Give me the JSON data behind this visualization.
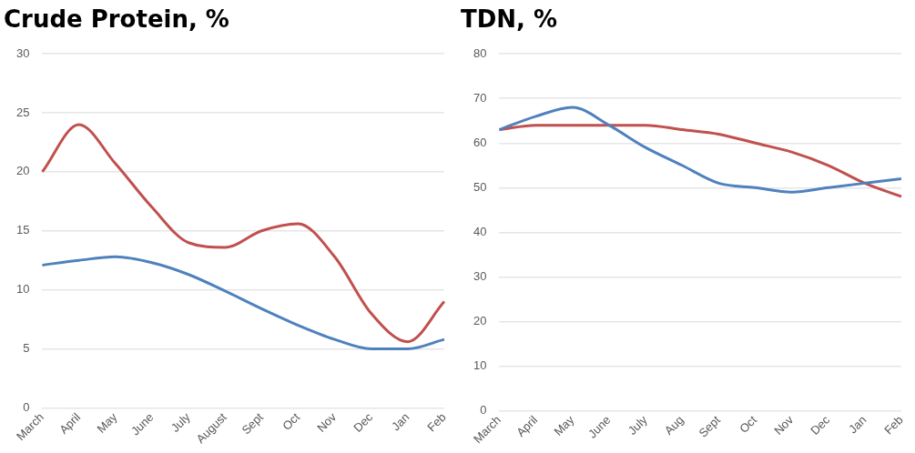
{
  "chart_data": [
    {
      "type": "line",
      "title": "Crude Protein, %",
      "categories": [
        "March",
        "April",
        "May",
        "June",
        "July",
        "August",
        "Sept",
        "Oct",
        "Nov",
        "Dec",
        "Jan",
        "Feb"
      ],
      "series": [
        {
          "color": "#c0504d",
          "values": [
            20,
            24,
            20.7,
            17,
            14,
            13.6,
            15,
            15.6,
            12.8,
            8,
            5.6,
            9
          ]
        },
        {
          "color": "#4f81bd",
          "values": [
            12.1,
            12.5,
            12.8,
            12.3,
            11.3,
            9.9,
            8.4,
            7,
            5.8,
            5,
            5,
            5.8
          ]
        }
      ],
      "ylim": [
        0,
        30
      ],
      "yticks": [
        0,
        5,
        10,
        15,
        20,
        25,
        30
      ],
      "grid": "y",
      "legend": false
    },
    {
      "type": "line",
      "title": "TDN, %",
      "categories": [
        "March",
        "April",
        "May",
        "June",
        "July",
        "Aug",
        "Sept",
        "Oct",
        "Nov",
        "Dec",
        "Jan",
        "Feb"
      ],
      "series": [
        {
          "color": "#4f81bd",
          "values": [
            63,
            66,
            68,
            64,
            59,
            55,
            51,
            50,
            49,
            50,
            51,
            52
          ]
        },
        {
          "color": "#c0504d",
          "values": [
            63,
            64,
            64,
            64,
            64,
            63,
            62,
            60,
            58,
            55,
            51,
            48
          ]
        }
      ],
      "ylim": [
        0,
        80
      ],
      "yticks": [
        0,
        10,
        20,
        30,
        40,
        50,
        60,
        70,
        80
      ],
      "grid": "y",
      "legend": false
    }
  ]
}
